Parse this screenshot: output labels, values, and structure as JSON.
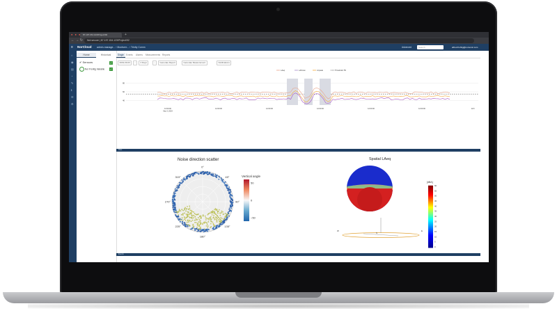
{
  "browser": {
    "tab_title": "87.197.154.123/Project/92",
    "address": "87.197.154.123/Project/92",
    "address_label": "Not secure"
  },
  "app": {
    "logo": "NorCloud",
    "breadcrumb": "admin-manage... › Montserr... › Trinity Comm",
    "advanced_label": "Advanced",
    "search_placeholder": "Search",
    "user_email": "alfred.frohlig@norsonic.com"
  },
  "sidepanel": {
    "tabs": [
      "Home",
      "Historical"
    ],
    "sensors_label": "Sensors",
    "device_label": "Nor Frontig Variable"
  },
  "main": {
    "tabs": [
      "Single",
      "Events",
      "Alarms",
      "Measurements",
      "Reports"
    ],
    "active_tab": "Single",
    "toolbar": {
      "date": "2019-09-03",
      "range": "4 Days",
      "btn_download": "Generate Report",
      "btn_measure": "Generate Measurement",
      "btn_notif": "Notifications"
    },
    "chart_strip_label": "Files",
    "bottom_strip_label": "Events"
  },
  "chart_data": [
    {
      "type": "line",
      "title": "",
      "legend": [
        "LAeq",
        "LAFmax",
        "LCpeak",
        "Threshold: 55"
      ],
      "legend_placement": "top",
      "x_ticks": [
        "12:00:00\nSep 3, 2019",
        "12:00:00",
        "12:00:00",
        "12:00:00",
        "12:00:00",
        "12:00:00",
        "12:0"
      ],
      "y_ticks": [
        80,
        60,
        40
      ],
      "threshold": 55,
      "ylim": [
        30,
        90
      ],
      "grid": true
    },
    {
      "type": "scatter",
      "title": "Noise direction scatter",
      "polar": true,
      "angle_ticks": [
        "0°",
        "45°",
        "90°",
        "135°",
        "180°",
        "225°",
        "270°",
        "315°"
      ],
      "colorbar_label": "Vertical angle",
      "colorbar_ticks": [
        50,
        0,
        -50
      ]
    },
    {
      "type": "heatmap",
      "title": "Spatial LAeq",
      "colorbar_label": "[dBA]",
      "colorbar_ticks": [
        60,
        55,
        50,
        45,
        40,
        35,
        30,
        25,
        20,
        15,
        10,
        5,
        0
      ],
      "compass": [
        "W",
        "S",
        "E"
      ]
    }
  ]
}
